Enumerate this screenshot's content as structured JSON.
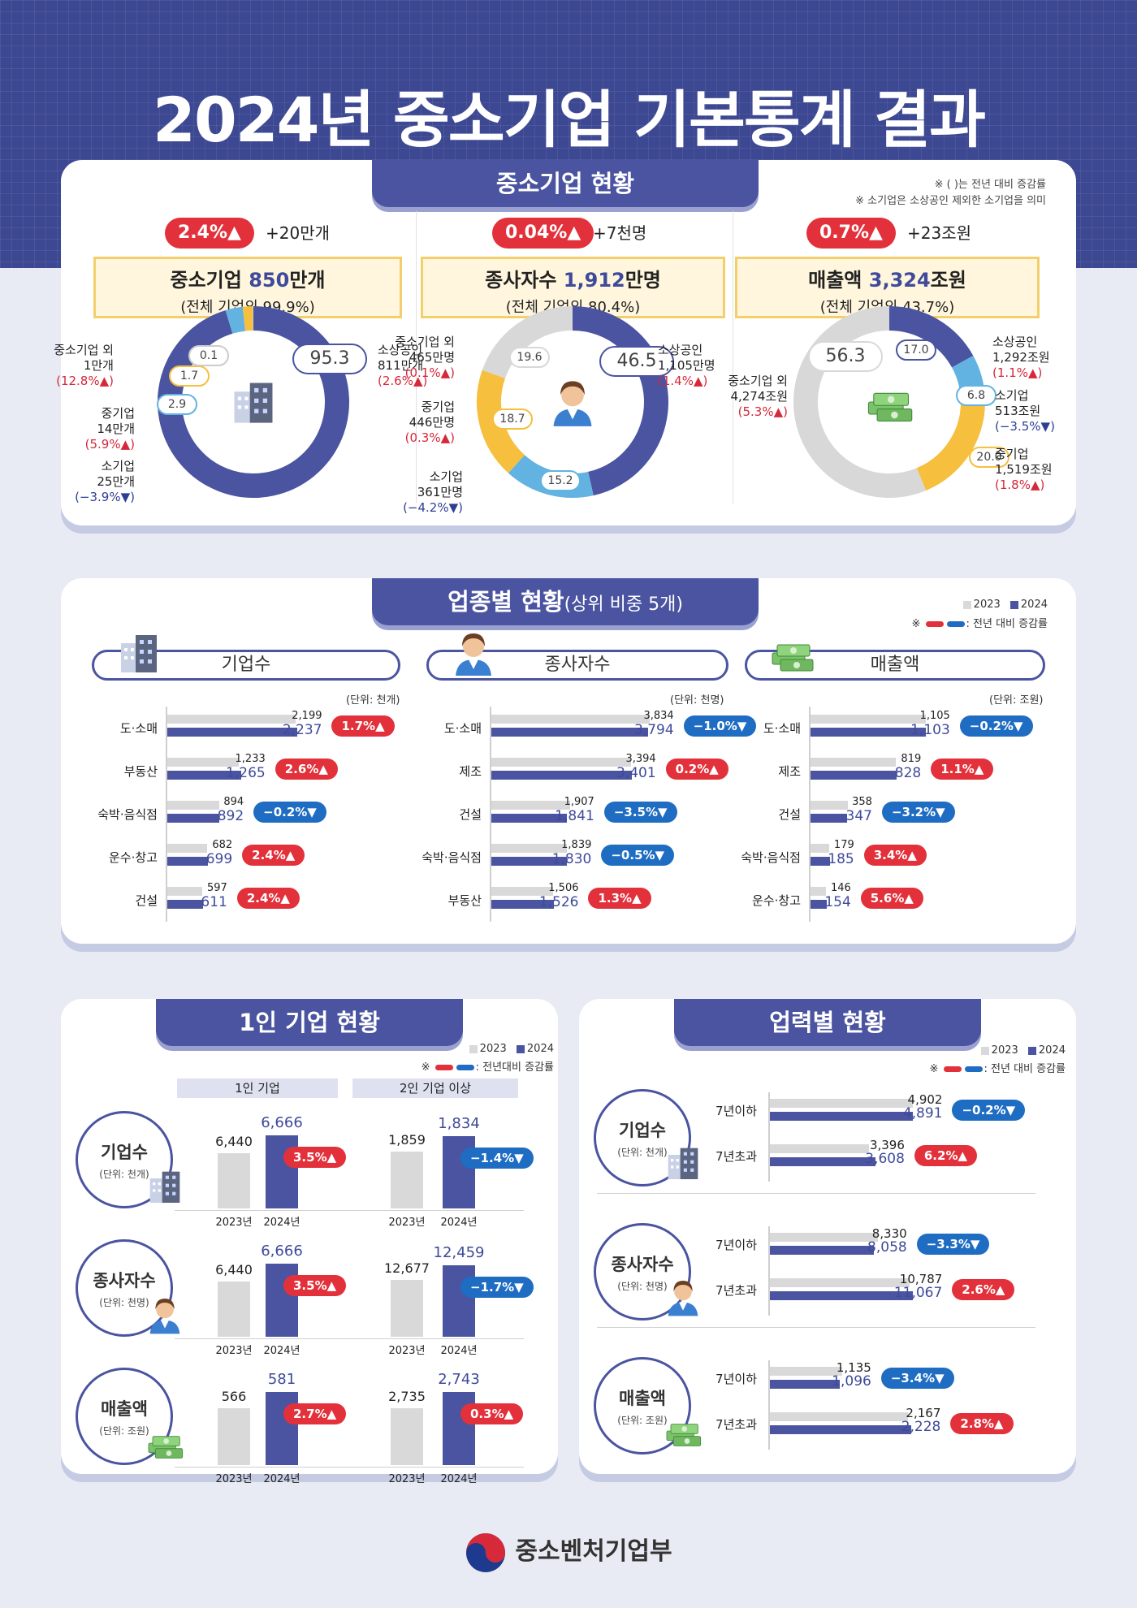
{
  "title": "2024년 중소기업 기본통계 결과",
  "colors": {
    "accent": "#4a54a0",
    "up": "#e2313b",
    "down": "#1e6dc2",
    "prev": "#d9d9d9",
    "highlight": "#fff6dd"
  },
  "status": {
    "heading": "중소기업 현황",
    "note1": "※ ( )는 전년 대비 증감률",
    "note2": "※ 소기업은 소상공인 제외한 소기업을 의미",
    "panels": [
      {
        "icon": "building-icon",
        "badge": "2.4%▲",
        "change": "+20만개",
        "main_prefix": "중소기업 ",
        "main_value": "850",
        "main_suffix": "만개",
        "share": "(전체 기업의 99.9%)",
        "donut": [
          {
            "value": 95.3,
            "label": "95.3",
            "color": "#4a54a0"
          },
          {
            "value": 2.9,
            "label": "2.9",
            "color": "#62b3e2"
          },
          {
            "value": 1.7,
            "label": "1.7",
            "color": "#f6bf3e"
          },
          {
            "value": 0.1,
            "label": "0.1",
            "color": "#cccccc"
          }
        ],
        "labels": [
          {
            "name": "소상공인",
            "amount": "811만개",
            "rate": "(2.6%▲)"
          },
          {
            "name": "중소기업 외",
            "amount": "1만개",
            "rate": "(12.8%▲)"
          },
          {
            "name": "중기업",
            "amount": "14만개",
            "rate": "(5.9%▲)"
          },
          {
            "name": "소기업",
            "amount": "25만개",
            "rate": "(−3.9%▼)"
          }
        ]
      },
      {
        "icon": "worker-icon",
        "badge": "0.04%▲",
        "change": "+7천명",
        "main_prefix": "종사자수 ",
        "main_value": "1,912",
        "main_suffix": "만명",
        "share": "(전체 기업의 80.4%)",
        "donut": [
          {
            "value": 46.5,
            "label": "46.5",
            "color": "#4a54a0"
          },
          {
            "value": 15.2,
            "label": "15.2",
            "color": "#62b3e2"
          },
          {
            "value": 18.7,
            "label": "18.7",
            "color": "#f6bf3e"
          },
          {
            "value": 19.6,
            "label": "19.6",
            "color": "#d8d8d8"
          }
        ],
        "labels": [
          {
            "name": "소상공인",
            "amount": "1,105만명",
            "rate": "(1.4%▲)"
          },
          {
            "name": "중소기업 외",
            "amount": "465만명",
            "rate": "(0.1%▲)"
          },
          {
            "name": "중기업",
            "amount": "446만명",
            "rate": "(0.3%▲)"
          },
          {
            "name": "소기업",
            "amount": "361만명",
            "rate": "(−4.2%▼)"
          }
        ]
      },
      {
        "icon": "money-icon",
        "badge": "0.7%▲",
        "change": "+23조원",
        "main_prefix": "매출액 ",
        "main_value": "3,324",
        "main_suffix": "조원",
        "share": "(전체 기업의 43.7%)",
        "donut": [
          {
            "value": 17.0,
            "label": "17.0",
            "color": "#4a54a0"
          },
          {
            "value": 6.8,
            "label": "6.8",
            "color": "#62b3e2"
          },
          {
            "value": 20.0,
            "label": "20.0",
            "color": "#f6bf3e"
          },
          {
            "value": 56.3,
            "label": "56.3",
            "color": "#d8d8d8"
          }
        ],
        "labels": [
          {
            "name": "소상공인",
            "amount": "1,292조원",
            "rate": "(1.1%▲)"
          },
          {
            "name": "소기업",
            "amount": "513조원",
            "rate": "(−3.5%▼)"
          },
          {
            "name": "중기업",
            "amount": "1,519조원",
            "rate": "(1.8%▲)"
          },
          {
            "name": "중소기업 외",
            "amount": "4,274조원",
            "rate": "(5.3%▲)"
          }
        ]
      }
    ]
  },
  "industry": {
    "heading": "업종별 현황",
    "heading_sub": "(상위 비중 5개)",
    "legend_2023": "2023",
    "legend_2024": "2024",
    "legend_note": ": 전년 대비 증감률",
    "groups": [
      {
        "tab": "기업수",
        "icon": "building-icon",
        "unit": "(단위: 천개)",
        "max": 2300,
        "rows": [
          {
            "cat": "도·소매",
            "v23": 2199,
            "v24": 2237,
            "l23": "2,199",
            "l24": "2,237",
            "rate": "1.7%▲",
            "dir": "up"
          },
          {
            "cat": "부동산",
            "v23": 1233,
            "v24": 1265,
            "l23": "1,233",
            "l24": "1,265",
            "rate": "2.6%▲",
            "dir": "up"
          },
          {
            "cat": "숙박·음식점",
            "v23": 894,
            "v24": 892,
            "l23": "894",
            "l24": "892",
            "rate": "−0.2%▼",
            "dir": "down"
          },
          {
            "cat": "운수·창고",
            "v23": 682,
            "v24": 699,
            "l23": "682",
            "l24": "699",
            "rate": "2.4%▲",
            "dir": "up"
          },
          {
            "cat": "건설",
            "v23": 597,
            "v24": 611,
            "l23": "597",
            "l24": "611",
            "rate": "2.4%▲",
            "dir": "up"
          }
        ]
      },
      {
        "tab": "종사자수",
        "icon": "worker-icon",
        "unit": "(단위: 천명)",
        "max": 3900,
        "rows": [
          {
            "cat": "도·소매",
            "v23": 3834,
            "v24": 3794,
            "l23": "3,834",
            "l24": "3,794",
            "rate": "−1.0%▼",
            "dir": "down"
          },
          {
            "cat": "제조",
            "v23": 3394,
            "v24": 3401,
            "l23": "3,394",
            "l24": "3,401",
            "rate": "0.2%▲",
            "dir": "up"
          },
          {
            "cat": "건설",
            "v23": 1907,
            "v24": 1841,
            "l23": "1,907",
            "l24": "1,841",
            "rate": "−3.5%▼",
            "dir": "down"
          },
          {
            "cat": "숙박·음식점",
            "v23": 1839,
            "v24": 1830,
            "l23": "1,839",
            "l24": "1,830",
            "rate": "−0.5%▼",
            "dir": "down"
          },
          {
            "cat": "부동산",
            "v23": 1506,
            "v24": 1526,
            "l23": "1,506",
            "l24": "1,526",
            "rate": "1.3%▲",
            "dir": "up"
          }
        ]
      },
      {
        "tab": "매출액",
        "icon": "money-icon",
        "unit": "(단위: 조원)",
        "max": 1130,
        "rows": [
          {
            "cat": "도·소매",
            "v23": 1105,
            "v24": 1103,
            "l23": "1,105",
            "l24": "1,103",
            "rate": "−0.2%▼",
            "dir": "down"
          },
          {
            "cat": "제조",
            "v23": 819,
            "v24": 828,
            "l23": "819",
            "l24": "828",
            "rate": "1.1%▲",
            "dir": "up"
          },
          {
            "cat": "건설",
            "v23": 358,
            "v24": 347,
            "l23": "358",
            "l24": "347",
            "rate": "−3.2%▼",
            "dir": "down"
          },
          {
            "cat": "숙박·음식점",
            "v23": 179,
            "v24": 185,
            "l23": "179",
            "l24": "185",
            "rate": "3.4%▲",
            "dir": "up"
          },
          {
            "cat": "운수·창고",
            "v23": 146,
            "v24": 154,
            "l23": "146",
            "l24": "154",
            "rate": "5.6%▲",
            "dir": "up"
          }
        ]
      }
    ]
  },
  "solo": {
    "heading": "1인 기업 현황",
    "legend_2023": "2023",
    "legend_2024": "2024",
    "legend_note": ": 전년대비 증감률",
    "col1": "1인 기업",
    "col2": "2인 기업 이상",
    "year1": "2023년",
    "year2": "2024년",
    "rows": [
      {
        "title": "기업수",
        "unit": "(단위: 천개)",
        "icon": "building-icon",
        "a23": 6440,
        "a24": 6666,
        "al23": "6,440",
        "al24": "6,666",
        "arate": "3.5%▲",
        "adir": "up",
        "b23": 1859,
        "b24": 1834,
        "bl23": "1,859",
        "bl24": "1,834",
        "brate": "−1.4%▼",
        "bdir": "down"
      },
      {
        "title": "종사자수",
        "unit": "(단위: 천명)",
        "icon": "worker-icon",
        "a23": 6440,
        "a24": 6666,
        "al23": "6,440",
        "al24": "6,666",
        "arate": "3.5%▲",
        "adir": "up",
        "b23": 12677,
        "b24": 12459,
        "bl23": "12,677",
        "bl24": "12,459",
        "brate": "−1.7%▼",
        "bdir": "down"
      },
      {
        "title": "매출액",
        "unit": "(단위: 조원)",
        "icon": "money-icon",
        "a23": 566,
        "a24": 581,
        "al23": "566",
        "al24": "581",
        "arate": "2.7%▲",
        "adir": "up",
        "b23": 2735,
        "b24": 2743,
        "bl23": "2,735",
        "bl24": "2,743",
        "brate": "0.3%▲",
        "bdir": "up"
      }
    ]
  },
  "age": {
    "heading": "업력별 현황",
    "legend_2023": "2023",
    "legend_2024": "2024",
    "legend_note": ": 전년 대비 증감률",
    "rows": [
      {
        "title": "기업수",
        "unit": "(단위: 천개)",
        "icon": "building-icon",
        "max": 5000,
        "items": [
          {
            "cat": "7년이하",
            "v23": 4902,
            "v24": 4891,
            "l23": "4,902",
            "l24": "4,891",
            "rate": "−0.2%▼",
            "dir": "down"
          },
          {
            "cat": "7년초과",
            "v23": 3396,
            "v24": 3608,
            "l23": "3,396",
            "l24": "3,608",
            "rate": "6.2%▲",
            "dir": "up"
          }
        ]
      },
      {
        "title": "종사자수",
        "unit": "(단위: 천명)",
        "icon": "worker-icon",
        "max": 11300,
        "items": [
          {
            "cat": "7년이하",
            "v23": 8330,
            "v24": 8058,
            "l23": "8,330",
            "l24": "8,058",
            "rate": "−3.3%▼",
            "dir": "down"
          },
          {
            "cat": "7년초과",
            "v23": 10787,
            "v24": 11067,
            "l23": "10,787",
            "l24": "11,067",
            "rate": "2.6%▲",
            "dir": "up"
          }
        ]
      },
      {
        "title": "매출액",
        "unit": "(단위: 조원)",
        "icon": "money-icon",
        "max": 2300,
        "items": [
          {
            "cat": "7년이하",
            "v23": 1135,
            "v24": 1096,
            "l23": "1,135",
            "l24": "1,096",
            "rate": "−3.4%▼",
            "dir": "down"
          },
          {
            "cat": "7년초과",
            "v23": 2167,
            "v24": 2228,
            "l23": "2,167",
            "l24": "2,228",
            "rate": "2.8%▲",
            "dir": "up"
          }
        ]
      }
    ]
  },
  "footer": {
    "ministry": "중소벤처기업부",
    "logo_icon": "taegeuk-logo-icon"
  }
}
